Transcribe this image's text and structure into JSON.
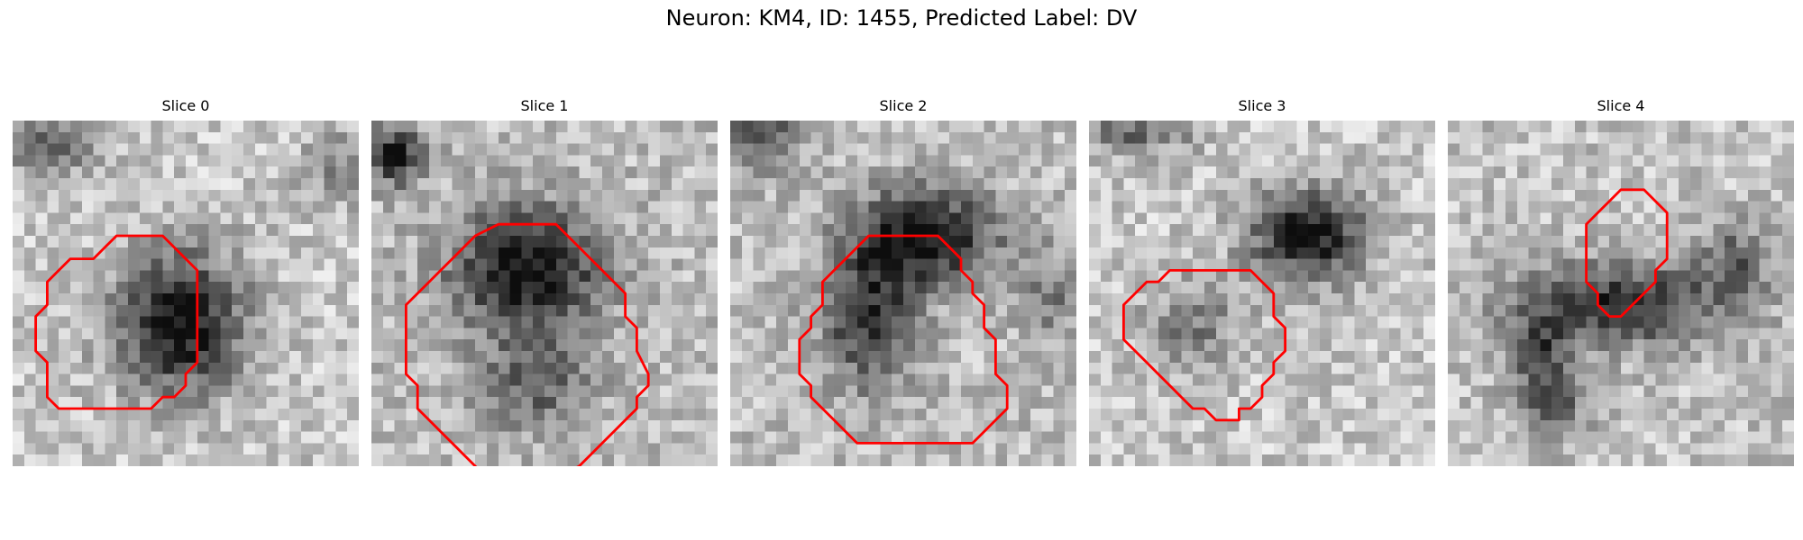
{
  "figure": {
    "title": "Neuron: KM4, ID: 1455, Predicted Label: DV"
  },
  "contour_color": "#ff0000",
  "slices": [
    {
      "label": "Slice 0",
      "contour": [
        [
          11,
          10
        ],
        [
          13,
          10
        ],
        [
          16,
          13
        ],
        [
          16,
          21
        ],
        [
          15,
          22
        ],
        [
          15,
          23
        ],
        [
          14,
          24
        ],
        [
          13,
          24
        ],
        [
          12,
          25
        ],
        [
          7,
          25
        ],
        [
          4,
          25
        ],
        [
          3,
          24
        ],
        [
          3,
          21
        ],
        [
          2,
          20
        ],
        [
          2,
          17
        ],
        [
          3,
          16
        ],
        [
          3,
          14
        ],
        [
          4,
          13
        ],
        [
          5,
          12
        ],
        [
          7,
          12
        ],
        [
          8,
          11
        ],
        [
          9,
          10
        ]
      ]
    },
    {
      "label": "Slice 1",
      "contour": [
        [
          11,
          9
        ],
        [
          16,
          9
        ],
        [
          17,
          10
        ],
        [
          18,
          11
        ],
        [
          19,
          12
        ],
        [
          20,
          13
        ],
        [
          21,
          14
        ],
        [
          22,
          15
        ],
        [
          22,
          17
        ],
        [
          23,
          18
        ],
        [
          23,
          20
        ],
        [
          24,
          22
        ],
        [
          24,
          23
        ],
        [
          23,
          24
        ],
        [
          23,
          25
        ],
        [
          22,
          26
        ],
        [
          21,
          27
        ],
        [
          20,
          28
        ],
        [
          19,
          29
        ],
        [
          18,
          30
        ],
        [
          16,
          31
        ],
        [
          15,
          31
        ],
        [
          14,
          32
        ],
        [
          12,
          32
        ],
        [
          11,
          31
        ],
        [
          10,
          31
        ],
        [
          9,
          30
        ],
        [
          8,
          29
        ],
        [
          7,
          28
        ],
        [
          6,
          27
        ],
        [
          5,
          26
        ],
        [
          4,
          25
        ],
        [
          4,
          23
        ],
        [
          3,
          22
        ],
        [
          3,
          16
        ],
        [
          4,
          15
        ],
        [
          5,
          14
        ],
        [
          6,
          13
        ],
        [
          7,
          12
        ],
        [
          8,
          11
        ],
        [
          9,
          10
        ]
      ]
    },
    {
      "label": "Slice 2",
      "contour": [
        [
          12,
          10
        ],
        [
          18,
          10
        ],
        [
          19,
          11
        ],
        [
          20,
          12
        ],
        [
          20,
          13
        ],
        [
          21,
          14
        ],
        [
          21,
          15
        ],
        [
          22,
          16
        ],
        [
          22,
          18
        ],
        [
          23,
          19
        ],
        [
          23,
          22
        ],
        [
          24,
          23
        ],
        [
          24,
          24
        ],
        [
          24,
          25
        ],
        [
          23,
          26
        ],
        [
          22,
          27
        ],
        [
          21,
          28
        ],
        [
          20,
          28
        ],
        [
          11,
          28
        ],
        [
          10,
          27
        ],
        [
          9,
          26
        ],
        [
          8,
          25
        ],
        [
          7,
          24
        ],
        [
          7,
          23
        ],
        [
          6,
          22
        ],
        [
          6,
          21
        ],
        [
          6,
          20
        ],
        [
          6,
          19
        ],
        [
          7,
          18
        ],
        [
          7,
          17
        ],
        [
          8,
          16
        ],
        [
          8,
          15
        ],
        [
          8,
          14
        ],
        [
          9,
          13
        ],
        [
          10,
          12
        ],
        [
          11,
          11
        ]
      ]
    },
    {
      "label": "Slice 3",
      "contour": [
        [
          9,
          13
        ],
        [
          14,
          13
        ],
        [
          15,
          14
        ],
        [
          16,
          15
        ],
        [
          16,
          17
        ],
        [
          17,
          18
        ],
        [
          17,
          19
        ],
        [
          17,
          20
        ],
        [
          16,
          21
        ],
        [
          16,
          22
        ],
        [
          15,
          23
        ],
        [
          15,
          24
        ],
        [
          14,
          25
        ],
        [
          13,
          25
        ],
        [
          13,
          26
        ],
        [
          12,
          26
        ],
        [
          11,
          26
        ],
        [
          10,
          25
        ],
        [
          9,
          25
        ],
        [
          8,
          24
        ],
        [
          7,
          23
        ],
        [
          6,
          22
        ],
        [
          5,
          21
        ],
        [
          4,
          20
        ],
        [
          3,
          19
        ],
        [
          3,
          16
        ],
        [
          4,
          15
        ],
        [
          5,
          14
        ],
        [
          6,
          14
        ],
        [
          7,
          13
        ]
      ]
    },
    {
      "label": "Slice 4",
      "contour": [
        [
          15,
          6
        ],
        [
          17,
          6
        ],
        [
          18,
          7
        ],
        [
          19,
          8
        ],
        [
          19,
          12
        ],
        [
          18,
          13
        ],
        [
          18,
          14
        ],
        [
          17,
          15
        ],
        [
          16,
          16
        ],
        [
          15,
          17
        ],
        [
          14,
          17
        ],
        [
          13,
          16
        ],
        [
          13,
          15
        ],
        [
          12,
          14
        ],
        [
          12,
          13
        ],
        [
          12,
          12
        ],
        [
          12,
          10
        ],
        [
          12,
          9
        ],
        [
          13,
          8
        ],
        [
          14,
          7
        ]
      ]
    }
  ]
}
